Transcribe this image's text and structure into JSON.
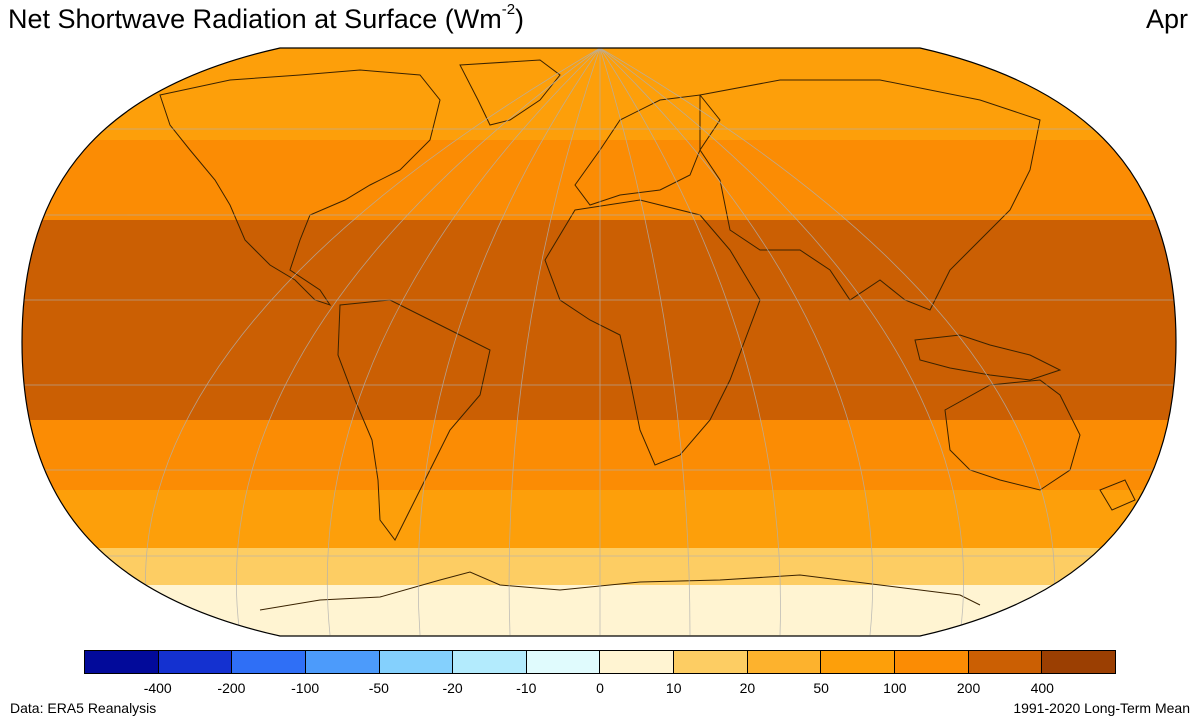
{
  "header": {
    "title_main": "Net Shortwave Radiation at Surface (Wm",
    "title_sup": "-2",
    "title_close": ")",
    "month": "Apr"
  },
  "map": {
    "projection": "Robinson",
    "bands": [
      {
        "level": "100-200",
        "color": "#fb8c04"
      },
      {
        "level": "200-400",
        "color": "#cb5f03"
      },
      {
        "level": "50-100",
        "color": "#fd9f0a"
      },
      {
        "level": "20-50",
        "color": "#fdb22d"
      },
      {
        "level": "10-20",
        "color": "#fdcd63"
      },
      {
        "level": "0-10",
        "color": "#fff4d2"
      }
    ]
  },
  "colorbar": {
    "colors": [
      "#020a9a",
      "#1431d0",
      "#2f6ff6",
      "#4c9bfb",
      "#84d0fd",
      "#b3ebfd",
      "#e0fbfd",
      "#fff4d2",
      "#fdcd63",
      "#fdb22d",
      "#fd9f0a",
      "#fb8c04",
      "#cb5f03",
      "#9b3f02"
    ],
    "ticks": [
      "-400",
      "-200",
      "-100",
      "-50",
      "-20",
      "-10",
      "0",
      "10",
      "20",
      "50",
      "100",
      "200",
      "400"
    ]
  },
  "footer": {
    "source": "Data: ERA5 Reanalysis",
    "period": "1991-2020 Long-Term Mean"
  }
}
